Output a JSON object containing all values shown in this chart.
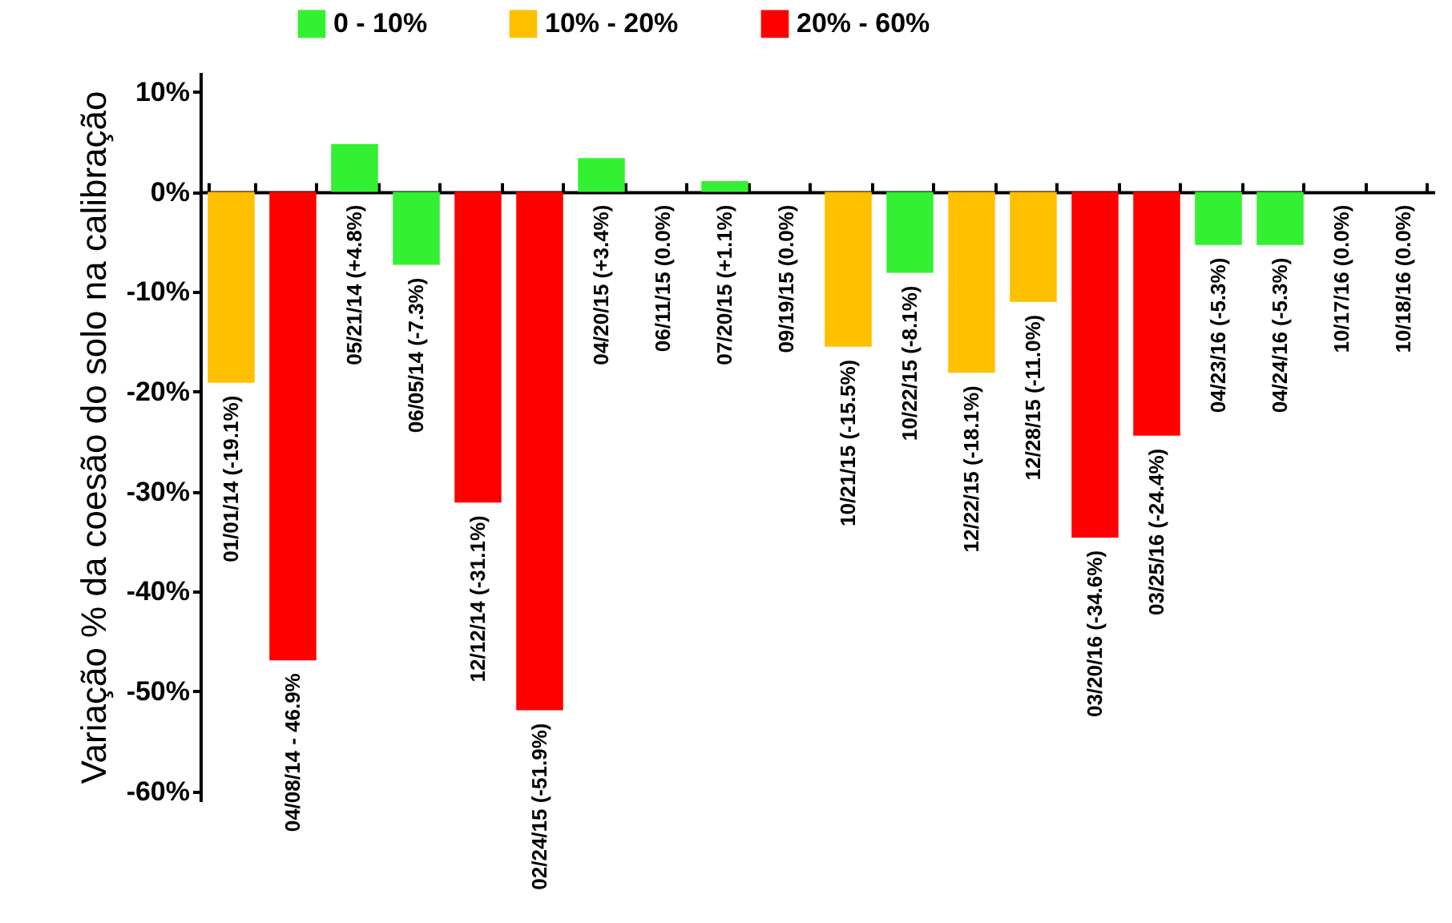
{
  "chart_data": {
    "type": "bar",
    "ylabel": "Variação % da coesão do solo na calibração",
    "categories": [
      "01/01/14 (-19.1%)",
      "04/08/14 - 46.9%",
      "05/21/14 (+4.8%)",
      "06/05/14 (-7.3%)",
      "12/12/14 (-31.1%)",
      "02/24/15 (-51.9%)",
      "04/20/15 (+3.4%)",
      "06/11/15 (0.0%)",
      "07/20/15 (+1.1%)",
      "09/19/15 (0.0%)",
      "10/21/15 (-15.5%)",
      "10/22/15 (-8.1%)",
      "12/22/15 (-18.1%)",
      "12/28/15 (-11.0%)",
      "03/20/16 (-34.6%)",
      "03/25/16 (-24.4%)",
      "04/23/16 (-5.3%)",
      "04/24/16 (-5.3%)",
      "10/17/16 (0.0%)",
      "10/18/16 (0.0%)"
    ],
    "series": [
      {
        "name": "0 - 10%",
        "color": "#33f033",
        "values": [
          null,
          null,
          4.8,
          -7.3,
          null,
          null,
          3.4,
          0.0,
          1.1,
          0.0,
          null,
          -8.1,
          null,
          null,
          null,
          null,
          -5.3,
          -5.3,
          0.0,
          0.0
        ]
      },
      {
        "name": "10% - 20%",
        "color": "#ffc000",
        "values": [
          -19.1,
          null,
          null,
          null,
          null,
          null,
          null,
          null,
          null,
          null,
          -15.5,
          null,
          -18.1,
          -11.0,
          null,
          null,
          null,
          null,
          null,
          null
        ]
      },
      {
        "name": "20% - 60%",
        "color": "#ff0000",
        "values": [
          null,
          -46.9,
          null,
          null,
          -31.1,
          -51.9,
          null,
          null,
          null,
          null,
          null,
          null,
          null,
          null,
          -34.6,
          -24.4,
          null,
          null,
          null,
          null
        ]
      }
    ],
    "ylim": [
      -61,
      12
    ],
    "yticks": [
      {
        "value": -60,
        "label": "-60%"
      },
      {
        "value": -50,
        "label": "-50%"
      },
      {
        "value": -40,
        "label": "-40%"
      },
      {
        "value": -30,
        "label": "-30%"
      },
      {
        "value": -20,
        "label": "-20%"
      },
      {
        "value": -10,
        "label": "-10%"
      },
      {
        "value": 0,
        "label": "0%"
      },
      {
        "value": 10,
        "label": "10%"
      }
    ],
    "tick_labels": "y",
    "grid": false,
    "legend": "top"
  }
}
